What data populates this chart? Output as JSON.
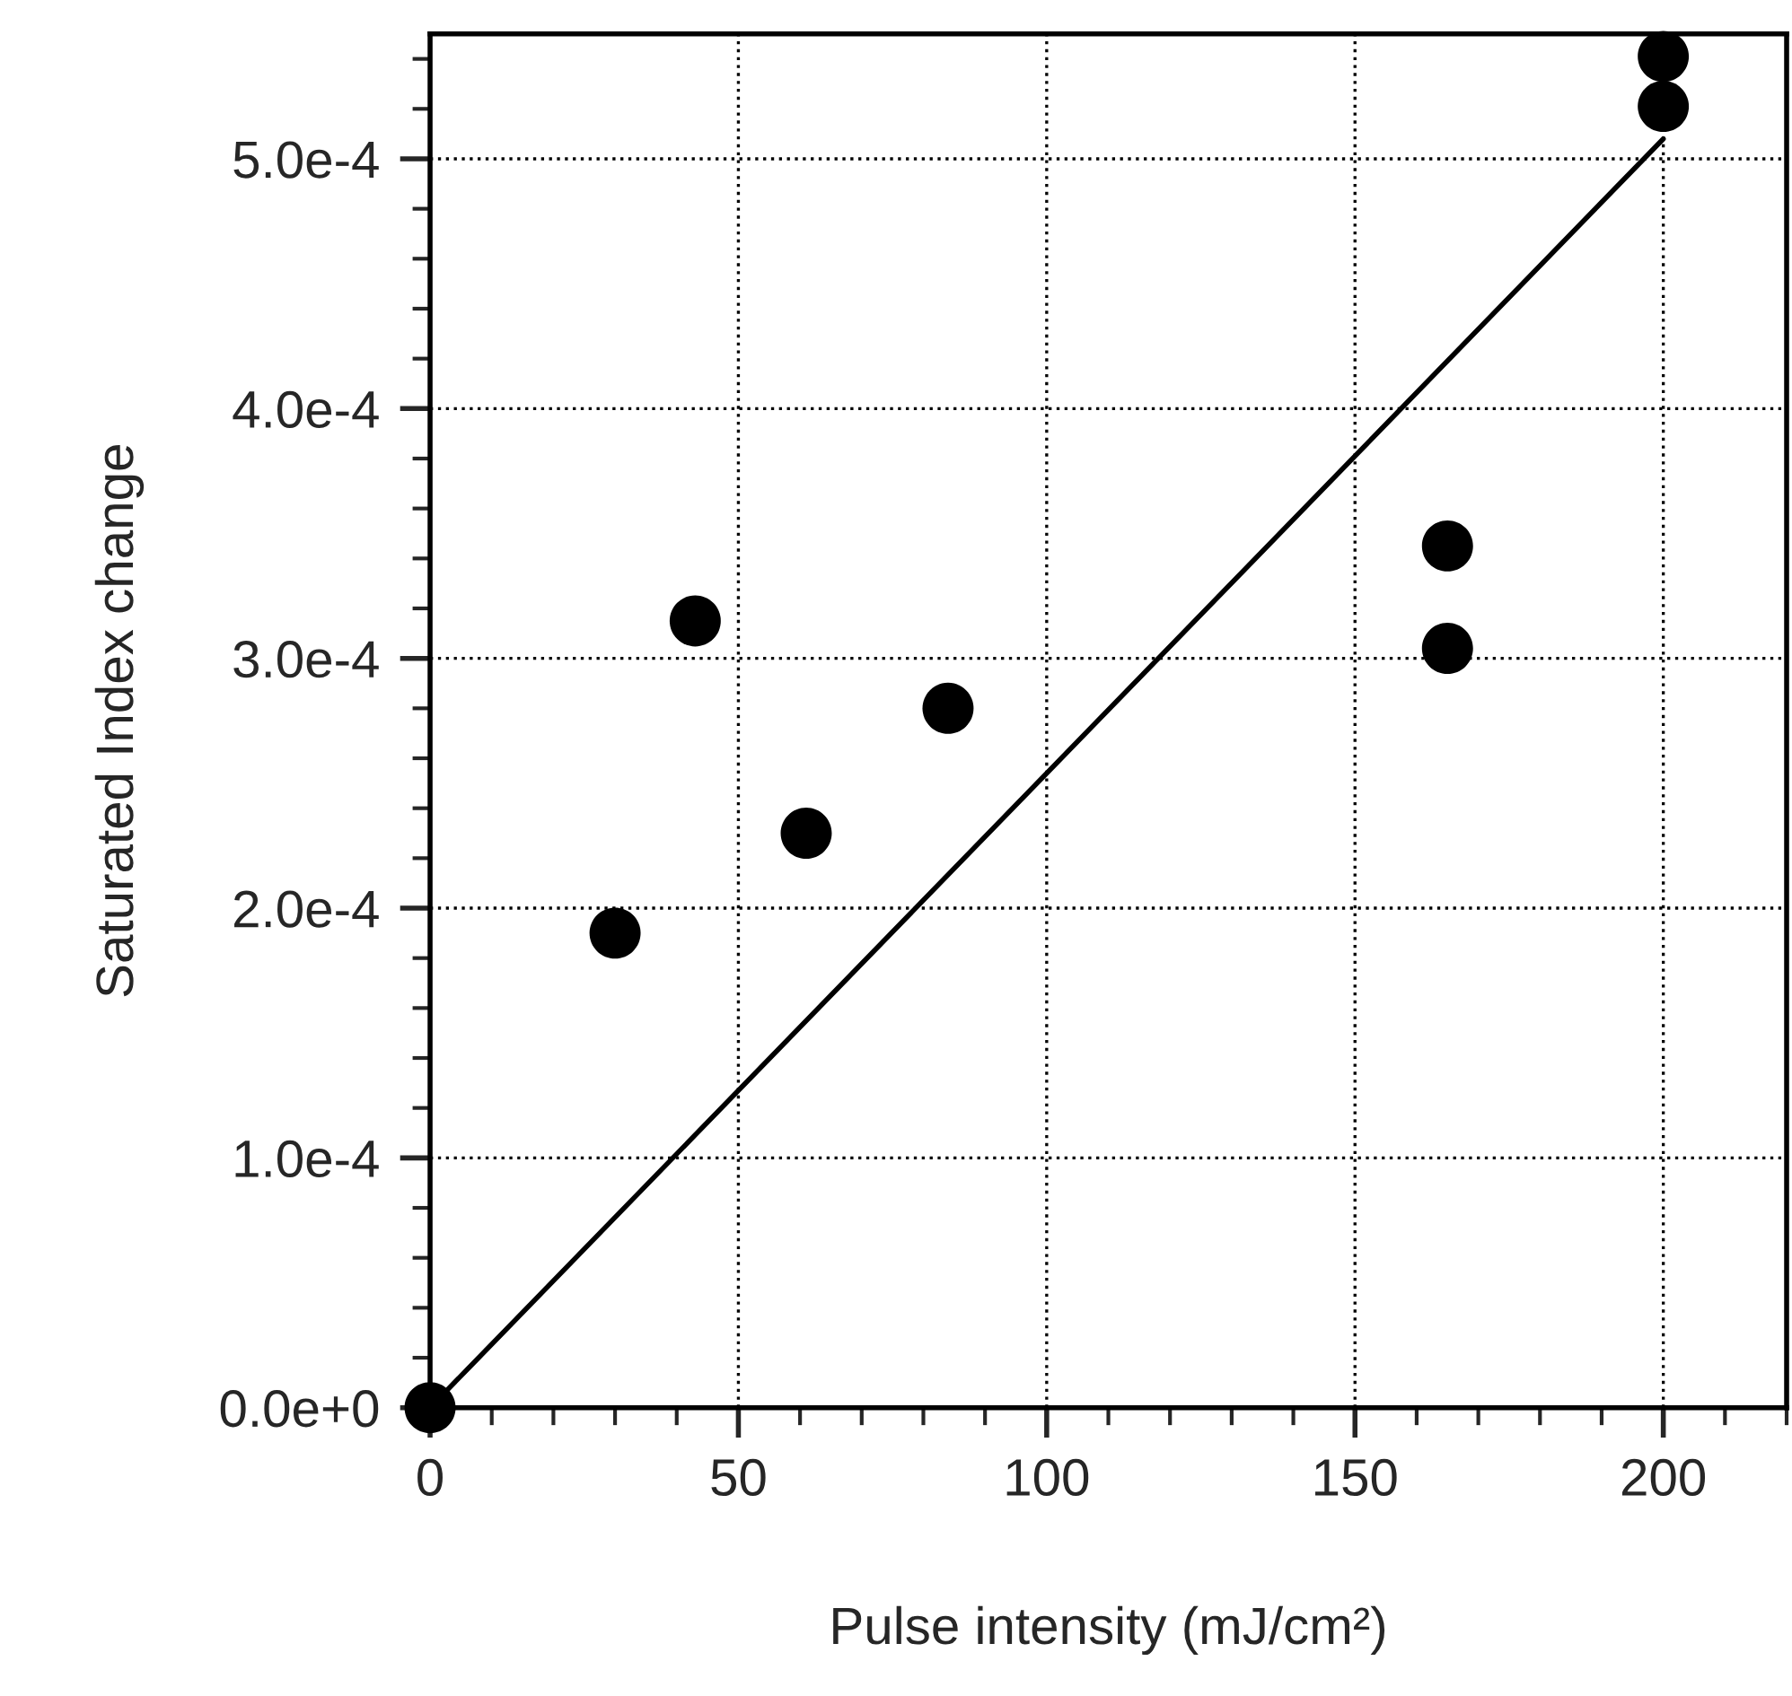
{
  "chart_data": {
    "type": "scatter",
    "xlabel": "Pulse intensity (mJ/cm²)",
    "ylabel": "Saturated Index change",
    "xlim": [
      0,
      220
    ],
    "xticks": [
      0,
      50,
      100,
      150,
      200
    ],
    "ylim": [
      0,
      0.00055
    ],
    "yticks": [
      {
        "value": 0,
        "label": "0.0e+0"
      },
      {
        "value": 0.0001,
        "label": "1.0e-4"
      },
      {
        "value": 0.0002,
        "label": "2.0e-4"
      },
      {
        "value": 0.0003,
        "label": "3.0e-4"
      },
      {
        "value": 0.0004,
        "label": "4.0e-4"
      },
      {
        "value": 0.0005,
        "label": "5.0e-4"
      }
    ],
    "grid": true,
    "series": [
      {
        "color": "#000000",
        "marker": "circle",
        "x": [
          0,
          30,
          43,
          61,
          84,
          165,
          165,
          200,
          200
        ],
        "values": [
          0,
          0.00019,
          0.000315,
          0.00023,
          0.00028,
          0.000345,
          0.000304,
          0.000541,
          0.000521
        ]
      },
      {
        "type": "line",
        "color": "#000000",
        "marker": "none",
        "line_style": "solid",
        "x": [
          0,
          200
        ],
        "values": [
          0,
          0.000508
        ]
      }
    ]
  }
}
